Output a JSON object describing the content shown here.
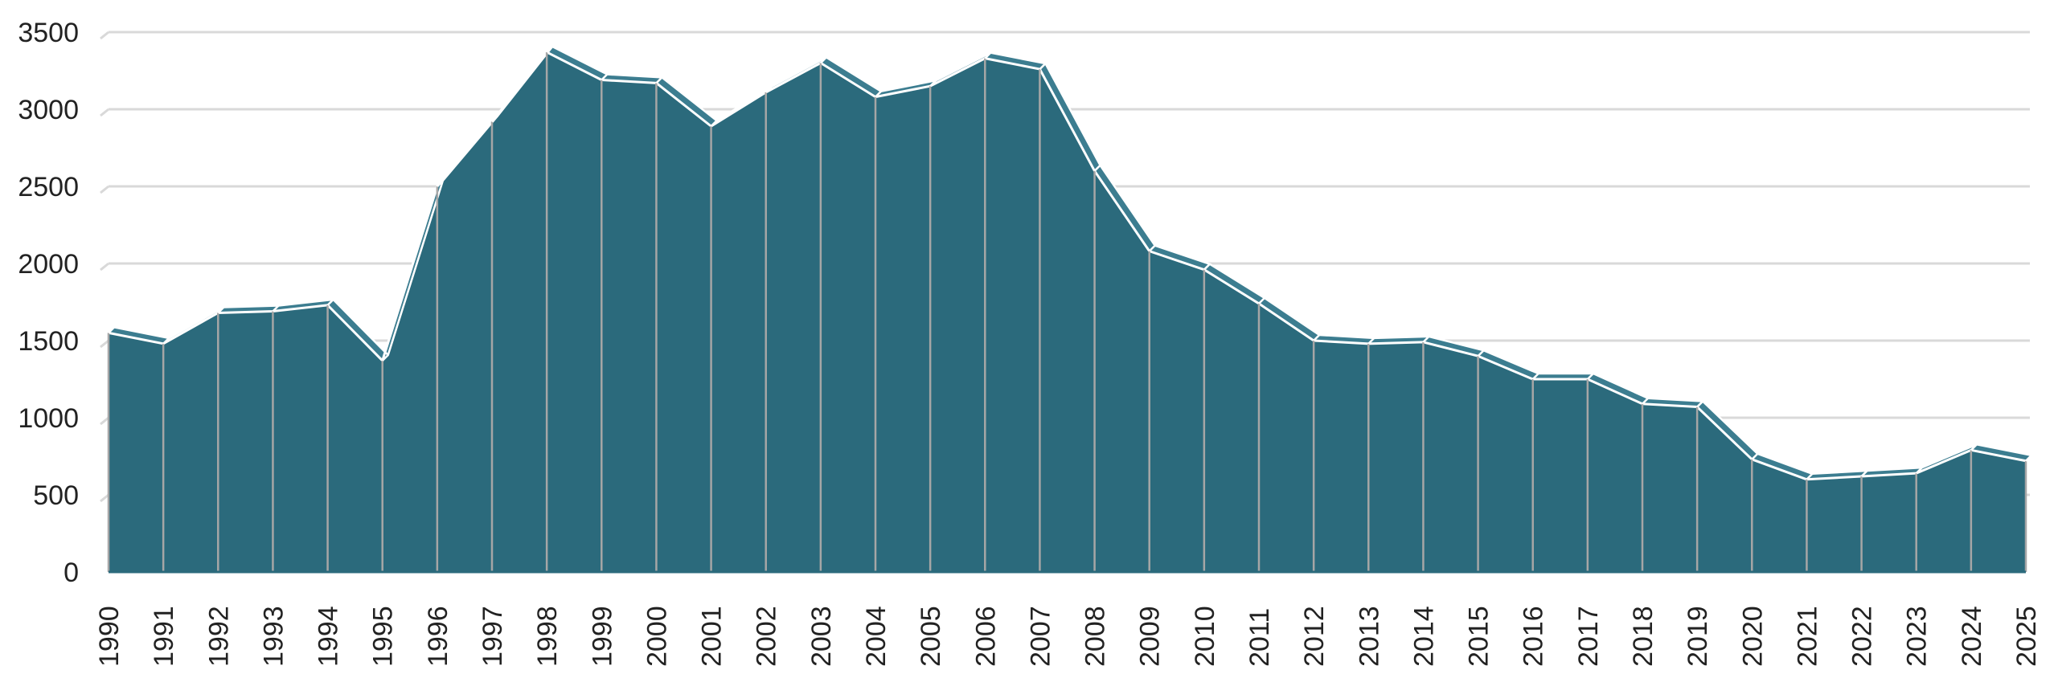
{
  "chart_data": {
    "type": "area",
    "title": "",
    "xlabel": "",
    "ylabel": "",
    "categories": [
      "1990",
      "1991",
      "1992",
      "1993",
      "1994",
      "1995",
      "1996",
      "1997",
      "1998",
      "1999",
      "2000",
      "2001",
      "2002",
      "2003",
      "2004",
      "2005",
      "2006",
      "2007",
      "2008",
      "2009",
      "2010",
      "2011",
      "2012",
      "2013",
      "2014",
      "2015",
      "2016",
      "2017",
      "2018",
      "2019",
      "2020",
      "2021",
      "2022",
      "2023",
      "2024",
      "2025"
    ],
    "values": [
      1550,
      1480,
      1680,
      1690,
      1730,
      1370,
      2500,
      2920,
      3370,
      3190,
      3170,
      2890,
      3110,
      3300,
      3080,
      3150,
      3330,
      3260,
      2600,
      2080,
      1960,
      1740,
      1500,
      1480,
      1490,
      1400,
      1250,
      1250,
      1090,
      1070,
      730,
      600,
      620,
      640,
      790,
      720
    ],
    "ylim": [
      0,
      3500
    ],
    "yticks": [
      0,
      500,
      1000,
      1500,
      2000,
      2500,
      3000,
      3500
    ],
    "grid": true,
    "legend": "none",
    "colors": {
      "area": "#2b6a7c",
      "area_top": "#3c7d90",
      "gridline": "#d9d9d9",
      "dividers": "#a6a6a6",
      "outline": "#ffffff"
    }
  }
}
